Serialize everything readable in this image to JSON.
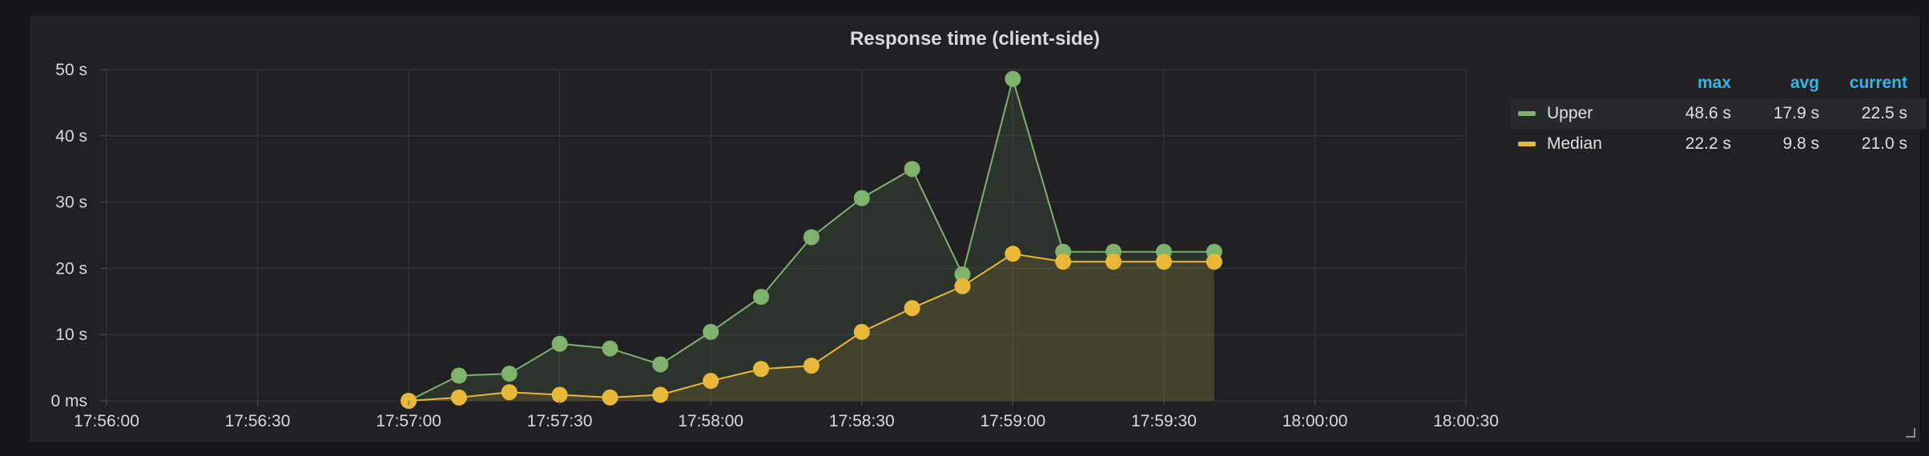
{
  "panel": {
    "title": "Response time (client-side)"
  },
  "legend": {
    "headers": {
      "max": "max",
      "avg": "avg",
      "current": "current"
    },
    "rows": [
      {
        "name": "Upper",
        "color": "#7eb26d",
        "max": "48.6 s",
        "avg": "17.9 s",
        "current": "22.5 s"
      },
      {
        "name": "Median",
        "color": "#eab839",
        "max": "22.2 s",
        "avg": "9.8 s",
        "current": "21.0 s"
      }
    ]
  },
  "chart_data": {
    "type": "line",
    "title": "Response time (client-side)",
    "x": [
      "17:57:00",
      "17:57:10",
      "17:57:20",
      "17:57:30",
      "17:57:40",
      "17:57:50",
      "17:58:00",
      "17:58:10",
      "17:58:20",
      "17:58:30",
      "17:58:40",
      "17:58:50",
      "17:59:00",
      "17:59:10",
      "17:59:20",
      "17:59:30",
      "17:59:40"
    ],
    "series": [
      {
        "name": "Upper",
        "color": "#7eb26d",
        "values": [
          0,
          3.8,
          4.1,
          8.6,
          7.9,
          5.5,
          10.4,
          15.7,
          24.7,
          30.6,
          35.0,
          19.1,
          48.6,
          22.5,
          22.5,
          22.5,
          22.5
        ]
      },
      {
        "name": "Median",
        "color": "#eab839",
        "values": [
          0,
          0.5,
          1.3,
          0.9,
          0.5,
          0.9,
          3.0,
          4.8,
          5.3,
          10.4,
          14.0,
          17.3,
          22.2,
          21.0,
          21.0,
          21.0,
          21.0
        ]
      }
    ],
    "x_ticks": [
      "17:56:00",
      "17:56:30",
      "17:57:00",
      "17:57:30",
      "17:58:00",
      "17:58:30",
      "17:59:00",
      "17:59:30",
      "18:00:00",
      "18:00:30"
    ],
    "y_ticks": [
      "0 ms",
      "10 s",
      "20 s",
      "30 s",
      "40 s",
      "50 s"
    ],
    "ylim": [
      0,
      50
    ],
    "grid": true,
    "legend_position": "right"
  }
}
